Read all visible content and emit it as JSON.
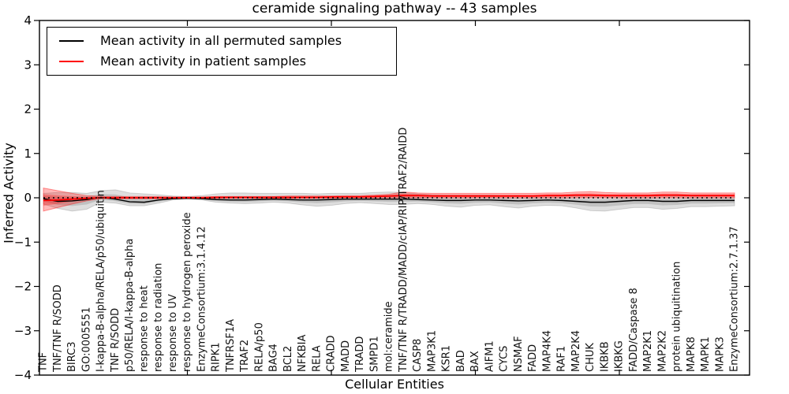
{
  "chart_data": {
    "type": "line",
    "title": "ceramide signaling pathway -- 43 samples",
    "xlabel": "Cellular Entities",
    "ylabel": "Inferred Activity",
    "ylim": [
      -4,
      4
    ],
    "grid": false,
    "background": "#ffffff",
    "legend_position": "upper left",
    "ytick_values": [
      4,
      3,
      2,
      1,
      0,
      -1,
      -2,
      -3,
      -4
    ],
    "ytick_labels": [
      "4",
      "3",
      "2",
      "1",
      "0",
      "−1",
      "−2",
      "−3",
      "−4"
    ],
    "x_major_tick_indices": [
      10,
      20,
      30,
      40
    ],
    "zero_line": {
      "style": "dotted",
      "color": "#000000"
    },
    "categories": [
      "TNF",
      "TNF/TNF R/SODD",
      "BIRC3",
      "GO:0005551",
      "I-kappa-B-alpha/RELA/p50/ubiquitin",
      "TNF R/SODD",
      "p50/RELA/I-kappa-B-alpha",
      "response to heat",
      "response to radiation",
      "response to UV",
      "response to hydrogen peroxide",
      "EnzymeConsortium:3.1.4.12",
      "RIPK1",
      "TNFRSF1A",
      "TRAF2",
      "RELA/p50",
      "BAG4",
      "BCL2",
      "NFKBIA",
      "RELA",
      "CRADD",
      "MADD",
      "TRADD",
      "SMPD1",
      "mol:ceramide",
      "TNF/TNF R/TRADD/MADD/cIAP/RIP/TRAF2/RAIDD",
      "CASP8",
      "MAP3K1",
      "KSR1",
      "BAD",
      "BAX",
      "AIFM1",
      "CYCS",
      "NSMAF",
      "FADD",
      "MAP4K4",
      "RAF1",
      "MAP2K4",
      "CHUK",
      "IKBKB",
      "IKBKG",
      "FADD/Caspase 8",
      "MAP2K1",
      "MAP2K2",
      "protein ubiquitination",
      "MAPK8",
      "MAPK1",
      "MAPK3",
      "EnzymeConsortium:2.7.1.37"
    ],
    "series": [
      {
        "name": "Mean activity in all permuted samples",
        "color": "#000000",
        "values": [
          -0.02,
          -0.08,
          -0.07,
          -0.04,
          0.01,
          -0.03,
          -0.09,
          -0.1,
          -0.05,
          -0.02,
          -0.01,
          -0.02,
          -0.04,
          -0.05,
          -0.05,
          -0.04,
          -0.03,
          -0.04,
          -0.05,
          -0.05,
          -0.04,
          -0.03,
          -0.03,
          -0.03,
          -0.03,
          -0.03,
          -0.04,
          -0.05,
          -0.06,
          -0.06,
          -0.05,
          -0.05,
          -0.06,
          -0.07,
          -0.06,
          -0.05,
          -0.06,
          -0.08,
          -0.1,
          -0.1,
          -0.08,
          -0.06,
          -0.06,
          -0.08,
          -0.08,
          -0.06,
          -0.06,
          -0.06,
          -0.06
        ]
      },
      {
        "name": "Mean activity in patient samples",
        "color": "#ff0000",
        "values": [
          -0.06,
          -0.05,
          -0.03,
          -0.01,
          0.0,
          0.0,
          0.0,
          0.0,
          0.0,
          0.0,
          0.0,
          0.0,
          0.01,
          0.01,
          0.01,
          0.01,
          0.01,
          0.01,
          0.01,
          0.01,
          0.02,
          0.02,
          0.02,
          0.03,
          0.04,
          0.05,
          0.05,
          0.04,
          0.04,
          0.04,
          0.04,
          0.04,
          0.04,
          0.04,
          0.04,
          0.05,
          0.05,
          0.06,
          0.06,
          0.05,
          0.05,
          0.05,
          0.05,
          0.06,
          0.06,
          0.05,
          0.05,
          0.05,
          0.05
        ]
      }
    ],
    "bands": [
      {
        "name": "permuted-sample-range",
        "series_index": 0,
        "color": "rgba(0,0,0,0.13)",
        "edge": "rgba(0,0,0,0.15)",
        "lower": [
          -0.14,
          -0.24,
          -0.3,
          -0.26,
          -0.1,
          -0.12,
          -0.18,
          -0.18,
          -0.12,
          -0.05,
          -0.03,
          -0.05,
          -0.1,
          -0.12,
          -0.13,
          -0.12,
          -0.1,
          -0.12,
          -0.16,
          -0.19,
          -0.17,
          -0.13,
          -0.11,
          -0.13,
          -0.15,
          -0.15,
          -0.13,
          -0.15,
          -0.19,
          -0.21,
          -0.17,
          -0.16,
          -0.2,
          -0.23,
          -0.19,
          -0.17,
          -0.18,
          -0.23,
          -0.29,
          -0.3,
          -0.26,
          -0.22,
          -0.22,
          -0.26,
          -0.24,
          -0.2,
          -0.2,
          -0.19,
          -0.18
        ],
        "upper": [
          0.1,
          0.12,
          0.12,
          0.1,
          0.16,
          0.18,
          0.11,
          0.09,
          0.07,
          0.04,
          0.03,
          0.05,
          0.09,
          0.11,
          0.11,
          0.1,
          0.1,
          0.1,
          0.1,
          0.09,
          0.1,
          0.1,
          0.1,
          0.12,
          0.13,
          0.12,
          0.09,
          0.07,
          0.06,
          0.06,
          0.06,
          0.06,
          0.05,
          0.05,
          0.05,
          0.05,
          0.05,
          0.04,
          0.04,
          0.04,
          0.04,
          0.05,
          0.05,
          0.04,
          0.04,
          0.05,
          0.05,
          0.05,
          0.05
        ]
      },
      {
        "name": "patient-sample-range",
        "series_index": 1,
        "color": "rgba(255,0,0,0.28)",
        "edge": "rgba(255,0,0,0.40)",
        "lower": [
          -0.3,
          -0.22,
          -0.14,
          -0.07,
          -0.02,
          -0.02,
          -0.02,
          -0.02,
          -0.02,
          -0.01,
          -0.01,
          -0.01,
          -0.01,
          -0.01,
          -0.01,
          -0.01,
          -0.01,
          -0.01,
          -0.01,
          -0.01,
          -0.01,
          0.0,
          0.0,
          0.0,
          0.0,
          0.0,
          0.0,
          0.0,
          0.0,
          0.0,
          0.0,
          0.0,
          0.0,
          0.0,
          0.0,
          0.0,
          0.0,
          0.0,
          0.0,
          0.0,
          0.0,
          0.0,
          0.0,
          0.0,
          0.0,
          0.0,
          0.0,
          0.0,
          0.0
        ],
        "upper": [
          0.22,
          0.16,
          0.1,
          0.05,
          0.03,
          0.03,
          0.03,
          0.03,
          0.03,
          0.02,
          0.02,
          0.02,
          0.03,
          0.03,
          0.03,
          0.03,
          0.03,
          0.04,
          0.04,
          0.04,
          0.04,
          0.05,
          0.05,
          0.06,
          0.08,
          0.13,
          0.11,
          0.1,
          0.1,
          0.1,
          0.1,
          0.1,
          0.1,
          0.1,
          0.1,
          0.11,
          0.11,
          0.13,
          0.14,
          0.12,
          0.11,
          0.11,
          0.11,
          0.13,
          0.13,
          0.11,
          0.11,
          0.11,
          0.11
        ]
      }
    ]
  }
}
